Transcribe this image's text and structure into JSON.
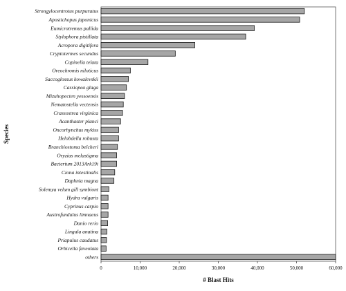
{
  "chart_data": {
    "type": "bar",
    "orientation": "horizontal",
    "xlabel": "# Blast Hits",
    "ylabel": "Species",
    "xlim": [
      0,
      60000
    ],
    "xticks": [
      0,
      10000,
      20000,
      30000,
      40000,
      50000,
      60000
    ],
    "xtick_labels": [
      "0",
      "10,000",
      "20,000",
      "30,000",
      "40,000",
      "50,000",
      "60,000"
    ],
    "grid": false,
    "colors": {
      "bar_fill": "#a6a6a6",
      "bar_stroke": "#1a1a1a"
    },
    "categories": [
      "Strongylocentrotus purpuratus",
      "Apostichopus japonicus",
      "Eumicrotremus pallida",
      "Stylophora pistillata",
      "Acropora digitifera",
      "Cryptotermes secundus",
      "Copinella telata",
      "Oreochromis niloticus",
      "Saccoglossus kowalevskii",
      "Cassiopea glaga",
      "Mizuhopecten yessoensis",
      "Nematostella vectensis",
      "Crassostrea virginica",
      "Acanthaster planci",
      "Oncorhynchus mykiss",
      "Helobdella robusta",
      "Branchiostoma belcheri",
      "Oryzias melastigma",
      "Bacterium 2013Ark19i",
      "Ciona intestinalis",
      "Daphnia magna",
      "Solemya velum gill symbiont",
      "Hydra vulgaris",
      "Cyprinus carpio",
      "Austrofundulus limnaeus",
      "Danio rerio",
      "Lingula anatina",
      "Priapulus caudatus",
      "Orbicella faveolata",
      "others"
    ],
    "values": [
      52000,
      50800,
      39200,
      37000,
      24000,
      19000,
      12000,
      7500,
      7000,
      6500,
      6000,
      5700,
      5500,
      5000,
      4500,
      4500,
      4200,
      4000,
      4000,
      3500,
      3300,
      2000,
      1800,
      1800,
      1800,
      1700,
      1500,
      1400,
      1300,
      60000
    ]
  }
}
